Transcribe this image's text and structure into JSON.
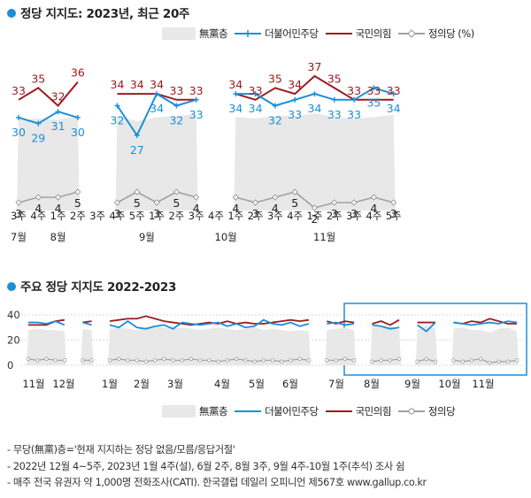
{
  "colors": {
    "dp": "#1a8fd8",
    "ppp": "#9b1c20",
    "justice": "#a0a0a0",
    "area": "#e8e8e8",
    "title_dot": "#1a8fd8",
    "highlight": "#1a8fd8"
  },
  "chart_data": [
    {
      "type": "line",
      "title": "정당 지지도: 2023년, 최근 20주",
      "legend": [
        "無黨층",
        "더불어민주당",
        "국민의힘",
        "정의당 (%)"
      ],
      "categories": [
        "3주",
        "4주",
        "1주",
        "2주",
        "3주",
        "4주",
        "5주",
        "1주",
        "2주",
        "3주",
        "4주",
        "1주",
        "2주",
        "3주",
        "4주",
        "1주",
        "2주",
        "3주",
        "4주",
        "5주"
      ],
      "month_labels": [
        {
          "label": "7월",
          "at": 0
        },
        {
          "label": "8월",
          "at": 2
        },
        {
          "label": "9월",
          "at": 6.5
        },
        {
          "label": "10월",
          "at": 10.5
        },
        {
          "label": "11월",
          "at": 15.5
        }
      ],
      "series": [
        {
          "name": "더불어민주당",
          "values": [
            30,
            29,
            31,
            30,
            null,
            32,
            27,
            34,
            32,
            33,
            null,
            34,
            34,
            32,
            33,
            34,
            33,
            33,
            35,
            34
          ]
        },
        {
          "name": "국민의힘",
          "values": [
            33,
            35,
            32,
            36,
            null,
            34,
            34,
            34,
            33,
            33,
            null,
            34,
            33,
            35,
            34,
            37,
            35,
            33,
            33,
            33
          ]
        },
        {
          "name": "정의당",
          "values": [
            3,
            4,
            4,
            5,
            null,
            3,
            5,
            3,
            5,
            4,
            null,
            4,
            3,
            4,
            5,
            2,
            3,
            3,
            4,
            3
          ]
        },
        {
          "name": "無黨층",
          "values": [
            31,
            30,
            31,
            28,
            null,
            28,
            32,
            29,
            28,
            27,
            null,
            29,
            30,
            28,
            28,
            26,
            29,
            30,
            29,
            27
          ]
        }
      ]
    },
    {
      "type": "line",
      "title": "주요 정당 지지도 2022-2023",
      "yticks": [
        0,
        20,
        40
      ],
      "ylim": [
        0,
        40
      ],
      "xlabels": [
        "11월",
        "12월",
        "1월",
        "2월",
        "3월",
        "4월",
        "5월",
        "6월",
        "7월",
        "8월",
        "9월",
        "10월",
        "11월"
      ],
      "legend": [
        "無黨층",
        "더불어민주당",
        "국민의힘",
        "정의당"
      ],
      "series": [
        {
          "name": "더불어민주당",
          "values": [
            34,
            34,
            33,
            35,
            32,
            null,
            34,
            32,
            null,
            32,
            30,
            35,
            30,
            29,
            31,
            32,
            29,
            34,
            33,
            32,
            33,
            34,
            31,
            33,
            30,
            31,
            36,
            33,
            32,
            34,
            31,
            33,
            null,
            33,
            34,
            32,
            33,
            null,
            32,
            31,
            29,
            30,
            null,
            32,
            27,
            34,
            null,
            34,
            33,
            32,
            33,
            34,
            33,
            35,
            34
          ]
        },
        {
          "name": "국민의힘",
          "values": [
            32,
            32,
            32,
            35,
            36,
            null,
            34,
            35,
            null,
            35,
            36,
            37,
            37,
            39,
            37,
            35,
            34,
            33,
            32,
            33,
            34,
            33,
            35,
            33,
            34,
            33,
            33,
            34,
            35,
            36,
            35,
            36,
            null,
            35,
            33,
            35,
            34,
            null,
            33,
            35,
            32,
            36,
            null,
            34,
            34,
            34,
            null,
            34,
            33,
            35,
            34,
            37,
            35,
            33,
            33
          ]
        },
        {
          "name": "정의당",
          "values": [
            5,
            4,
            5,
            4,
            4,
            null,
            4,
            4,
            null,
            4,
            5,
            4,
            4,
            3,
            4,
            5,
            4,
            4,
            5,
            4,
            4,
            3,
            4,
            5,
            4,
            3,
            4,
            4,
            3,
            4,
            5,
            4,
            null,
            4,
            4,
            5,
            4,
            null,
            3,
            4,
            4,
            5,
            null,
            3,
            5,
            3,
            null,
            4,
            3,
            4,
            5,
            2,
            3,
            3,
            4
          ]
        },
        {
          "name": "無黨층",
          "values": [
            28,
            29,
            28,
            28,
            27,
            null,
            29,
            28,
            null,
            29,
            30,
            29,
            28,
            30,
            31,
            30,
            29,
            30,
            29,
            28,
            29,
            30,
            29,
            28,
            29,
            30,
            28,
            29,
            28,
            27,
            28,
            27,
            null,
            28,
            29,
            30,
            28,
            null,
            31,
            30,
            31,
            28,
            null,
            28,
            32,
            29,
            null,
            29,
            30,
            28,
            28,
            26,
            29,
            30,
            27
          ]
        }
      ]
    }
  ],
  "notes": [
    "- 무당(無黨)층='현재 지지하는 정당 없음/모름/응답거절'",
    "- 2022년 12월 4~5주, 2023년 1월 4주(설), 6월 2주, 8월 3주, 9월 4주-10월 1주(추석) 조사 쉼",
    "- 매주 전국 유권자 약 1,000명 전화조사(CATI). 한국갤럽 데일리 오피니언 제567호 www.gallup.co.kr"
  ]
}
